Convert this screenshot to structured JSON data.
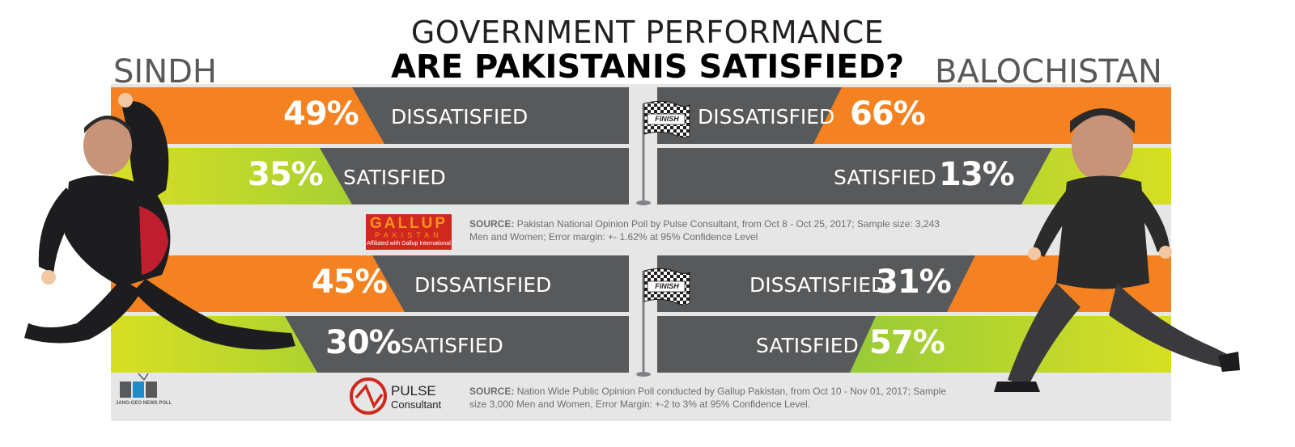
{
  "title": "GOVERNMENT PERFORMANCE",
  "subtitle": "ARE PAKISTANIS SATISFIED?",
  "regions": {
    "left": "SINDH",
    "right": "BALOCHISTAN"
  },
  "colors": {
    "orange": "#f58220",
    "green": "#8dc63f",
    "green_light": "#d7df23",
    "dark": "#58595b",
    "band": "#e6e6e7"
  },
  "chart_data": [
    {
      "type": "bar",
      "source_label": "SOURCE:",
      "source_text": "Pakistan National Opinion Poll by Pulse Consultant, from Oct 8 - Oct 25, 2017; Sample size: 3,243 Men and Women; Error margin: +- 1.62% at 95% Confidence Level",
      "categories": [
        "DISSATISFIED",
        "SATISFIED"
      ],
      "series": [
        {
          "name": "SINDH",
          "values": [
            49,
            35
          ],
          "labels": [
            "49%",
            "35%"
          ]
        },
        {
          "name": "BALOCHISTAN",
          "values": [
            66,
            13
          ],
          "labels": [
            "66%",
            "13%"
          ]
        }
      ]
    },
    {
      "type": "bar",
      "source_label": "SOURCE:",
      "source_text": "Nation Wide Public Opinion Poll conducted by Gallup Pakistan, from Oct 10 - Nov 01, 2017; Sample size 3,000 Men and Women, Error Margin: +-2 to 3% at 95% Confidence Level.",
      "categories": [
        "DISSATISFIED",
        "SATISFIED"
      ],
      "series": [
        {
          "name": "SINDH",
          "values": [
            45,
            30
          ],
          "labels": [
            "45%",
            "30%"
          ]
        },
        {
          "name": "BALOCHISTAN",
          "values": [
            31,
            57
          ],
          "labels": [
            "31%",
            "57%"
          ]
        }
      ]
    }
  ],
  "flag_text": "FINISH",
  "logos": {
    "gallup_title": "GALLUP",
    "gallup_sub": "PAKISTAN",
    "gallup_affil": "Affiliated with Gallup International",
    "pulse_line1": "PULSE",
    "pulse_line2": "Consultant",
    "jeo_name": "JANG-GEO NEWS POLL"
  }
}
